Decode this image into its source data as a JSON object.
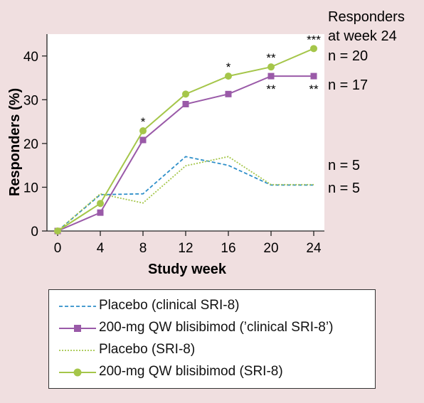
{
  "chart_data": {
    "type": "line",
    "xlabel": "Study week",
    "ylabel": "Responders (%)",
    "x": [
      0,
      4,
      8,
      12,
      16,
      20,
      24
    ],
    "xlim": [
      -1,
      25
    ],
    "ylim": [
      0,
      45
    ],
    "xticks": [
      "0",
      "4",
      "8",
      "12",
      "16",
      "20",
      "24"
    ],
    "yticks": [
      "0",
      "10",
      "20",
      "30",
      "40"
    ],
    "grid": false,
    "legend_position": "bottom",
    "series": [
      {
        "name": "Placebo (clinical SRI-8)",
        "color": "#2e8fc9",
        "style": "dashed",
        "marker": "none",
        "values": [
          0,
          8.3,
          8.5,
          17,
          15,
          10.5,
          10.5
        ]
      },
      {
        "name": "200-mg QW blisibimod (’clinical SRI-8’)",
        "color": "#9a5aa8",
        "style": "solid",
        "marker": "square",
        "values": [
          0,
          4.2,
          20.8,
          29,
          31.3,
          35.4,
          35.4
        ],
        "significance": [
          "",
          "",
          "",
          "",
          "",
          "**",
          "**"
        ]
      },
      {
        "name": "Placebo (SRI-8)",
        "color": "#a5c64a",
        "style": "dotted",
        "marker": "none",
        "values": [
          0,
          8.5,
          6.4,
          14.9,
          17,
          10.6,
          10.6
        ]
      },
      {
        "name": "200-mg QW blisibimod (SRI-8)",
        "color": "#a5c64a",
        "style": "solid",
        "marker": "circle",
        "values": [
          0,
          6.3,
          22.9,
          31.3,
          35.4,
          37.5,
          41.7
        ],
        "significance": [
          "",
          "",
          "*",
          "",
          "*",
          "**",
          "***"
        ]
      }
    ],
    "side_annotations": {
      "header": [
        "Responders",
        "at week 24"
      ],
      "counts": [
        "n = 20",
        "n = 17",
        "n = 5",
        "n = 5"
      ]
    }
  }
}
